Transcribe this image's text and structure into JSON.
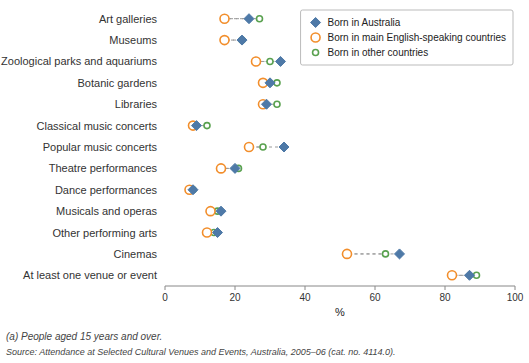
{
  "chart_data": {
    "type": "dot",
    "orientation": "horizontal",
    "categories": [
      "Art galleries",
      "Museums",
      "Zoological parks and aquariums",
      "Botanic gardens",
      "Libraries",
      "Classical music concerts",
      "Popular music concerts",
      "Theatre performances",
      "Dance performances",
      "Musicals and operas",
      "Other performing arts",
      "Cinemas",
      "At least one venue or event"
    ],
    "series": [
      {
        "name": "Born in Australia",
        "marker": "diamond",
        "values": [
          24,
          22,
          33,
          30,
          29,
          9,
          34,
          20,
          8,
          16,
          15,
          67,
          87
        ]
      },
      {
        "name": "Born in main English-speaking countries",
        "marker": "circle",
        "values": [
          17,
          17,
          26,
          28,
          28,
          8,
          24,
          16,
          7,
          13,
          12,
          52,
          82
        ]
      },
      {
        "name": "Born in other countries",
        "marker": "circle",
        "values": [
          27,
          22,
          30,
          32,
          32,
          12,
          28,
          21,
          8,
          15,
          14,
          63,
          89
        ]
      }
    ],
    "xlabel": "%",
    "xlim": [
      0,
      100
    ],
    "xticks": [
      0,
      20,
      40,
      60,
      80,
      100
    ],
    "grid": false,
    "legend": "upper right",
    "annotations": [
      "(a) People aged 15 years and over.",
      "Source: Attendance at Selected Cultural Venues and Events, Australia, 2005–06 (cat. no. 4114.0)."
    ]
  }
}
